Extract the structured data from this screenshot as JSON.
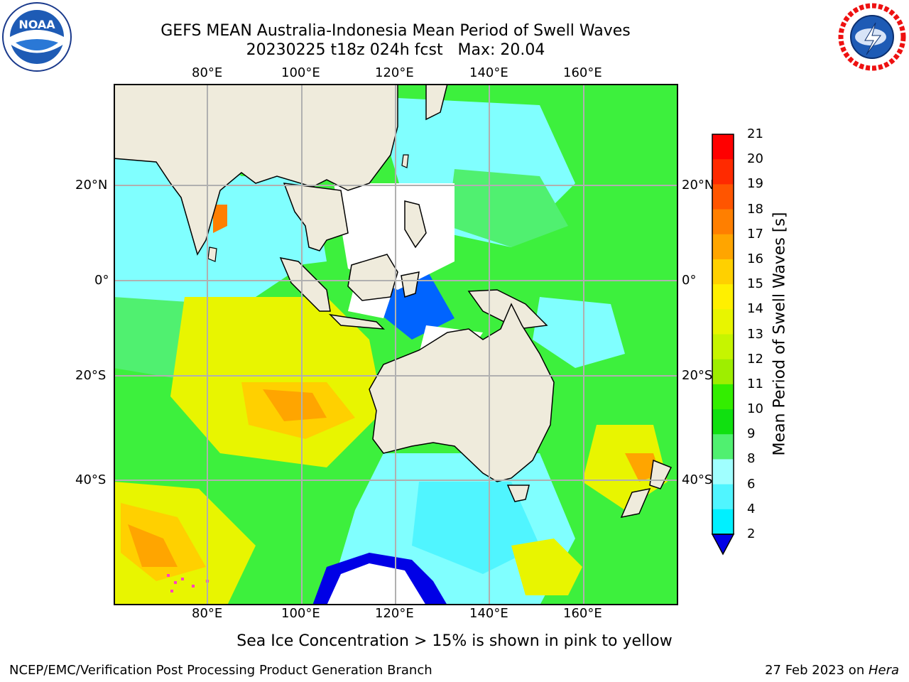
{
  "title": {
    "line1": "GEFS MEAN Australia-Indonesia Mean Period of Swell Waves",
    "line2": "20230225 t18z 024h fcst   Max: 20.04"
  },
  "logos": {
    "left": "NOAA",
    "right": "NATIONAL WEATHER SERVICE"
  },
  "map": {
    "lon_top": [
      "80°E",
      "100°E",
      "120°E",
      "140°E",
      "160°E"
    ],
    "lon_bottom": [
      "80°E",
      "100°E",
      "120°E",
      "140°E",
      "160°E"
    ],
    "lat_left": [
      "20°N",
      "0°",
      "20°S",
      "40°S"
    ],
    "lat_right": [
      "20°N",
      "0°",
      "20°S",
      "40°S"
    ]
  },
  "colorbar": {
    "title": "Mean Period of Swell Waves [s]",
    "ticks": [
      "21",
      "20",
      "19",
      "18",
      "17",
      "16",
      "15",
      "14",
      "13",
      "12",
      "11",
      "10",
      "9",
      "8",
      "6",
      "4",
      "2"
    ],
    "colors": [
      "#ff0000",
      "#ff2a00",
      "#ff5500",
      "#ff7f00",
      "#ffa500",
      "#ffd000",
      "#fff000",
      "#e8f500",
      "#c6f500",
      "#9eee00",
      "#33ee00",
      "#10e010",
      "#50f070",
      "#a0ffff",
      "#50f5ff",
      "#00f0ff",
      "#00c8ff",
      "#0064ff",
      "#0000e6"
    ]
  },
  "caption": "Sea Ice Concentration > 15% is shown in pink to yellow",
  "footer": {
    "left": "NCEP/EMC/Verification Post Processing Product Generation Branch",
    "right_prefix": "27 Feb 2023 on ",
    "right_italic": "Hera"
  }
}
